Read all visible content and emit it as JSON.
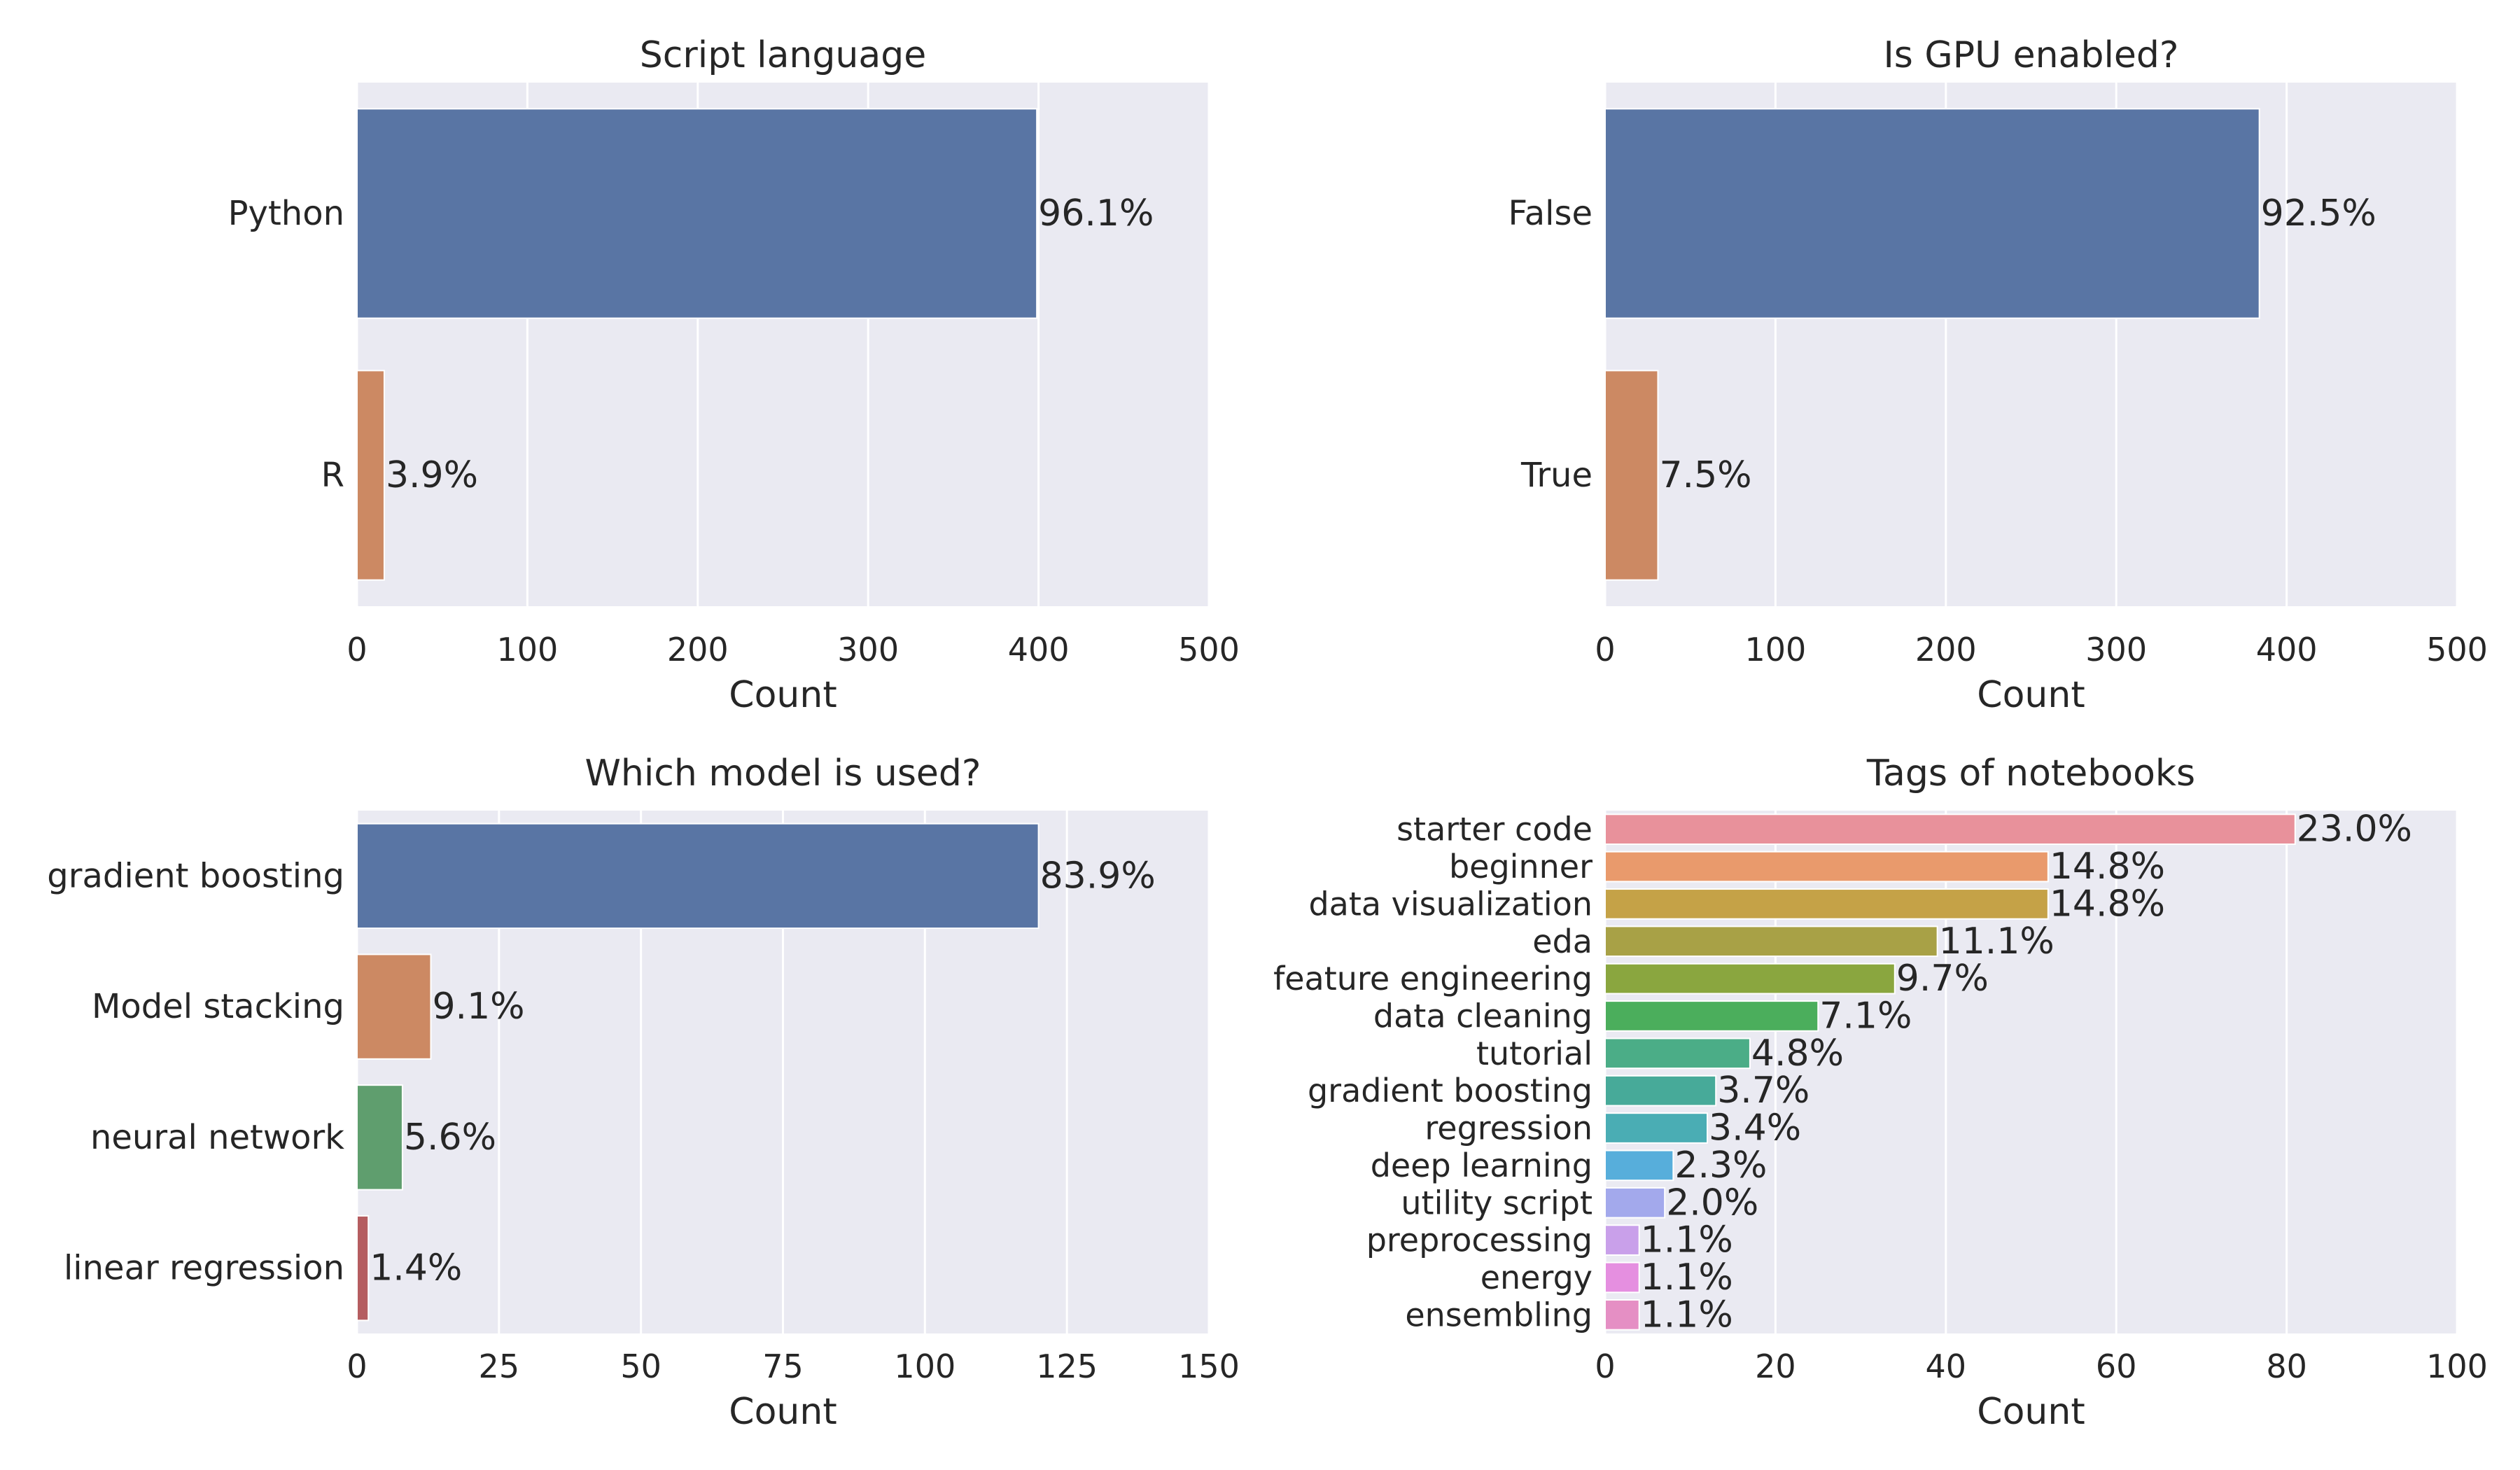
{
  "chart_data": [
    {
      "type": "bar",
      "orientation": "horizontal",
      "title": "Script language",
      "xlabel": "Count",
      "ylabel": "",
      "xlim": [
        0,
        500
      ],
      "xticks": [
        "0",
        "100",
        "200",
        "300",
        "400",
        "500"
      ],
      "grid": true,
      "categories": [
        "Python",
        "R"
      ],
      "values": [
        399,
        16
      ],
      "labels": [
        "96.1%",
        "3.9%"
      ],
      "colors": [
        "#5975a4",
        "#cc8963"
      ]
    },
    {
      "type": "bar",
      "orientation": "horizontal",
      "title": "Is GPU enabled?",
      "xlabel": "Count",
      "ylabel": "",
      "xlim": [
        0,
        500
      ],
      "xticks": [
        "0",
        "100",
        "200",
        "300",
        "400",
        "500"
      ],
      "grid": true,
      "categories": [
        "False",
        "True"
      ],
      "values": [
        384,
        31
      ],
      "labels": [
        "92.5%",
        "7.5%"
      ],
      "colors": [
        "#5975a4",
        "#cc8963"
      ]
    },
    {
      "type": "bar",
      "orientation": "horizontal",
      "title": "Which model is used?",
      "xlabel": "Count",
      "ylabel": "",
      "xlim": [
        0,
        150
      ],
      "xticks": [
        "0",
        "25",
        "50",
        "75",
        "100",
        "125",
        "150"
      ],
      "grid": true,
      "categories": [
        "gradient boosting",
        "Model stacking",
        "neural network",
        "linear regression"
      ],
      "values": [
        120,
        13,
        8,
        2
      ],
      "labels": [
        "83.9%",
        "9.1%",
        "5.6%",
        "1.4%"
      ],
      "colors": [
        "#5975a4",
        "#cc8963",
        "#5f9e6e",
        "#b55d60"
      ]
    },
    {
      "type": "bar",
      "orientation": "horizontal",
      "title": "Tags of notebooks",
      "xlabel": "Count",
      "ylabel": "",
      "xlim": [
        0,
        100
      ],
      "xticks": [
        "0",
        "20",
        "40",
        "60",
        "80",
        "100"
      ],
      "grid": true,
      "categories": [
        "starter code",
        "beginner",
        "data visualization",
        "eda",
        "feature engineering",
        "data cleaning",
        "tutorial",
        "gradient boosting",
        "regression",
        "deep learning",
        "utility script",
        "preprocessing",
        "energy",
        "ensembling"
      ],
      "values": [
        81,
        52,
        52,
        39,
        34,
        25,
        17,
        13,
        12,
        8,
        7,
        4,
        4,
        4
      ],
      "labels": [
        "23.0%",
        "14.8%",
        "14.8%",
        "11.1%",
        "9.7%",
        "7.1%",
        "4.8%",
        "3.7%",
        "3.4%",
        "2.3%",
        "2.0%",
        "1.1%",
        "1.1%",
        "1.1%"
      ],
      "colors": [
        "#e8919b",
        "#e99a6c",
        "#c5a247",
        "#a8a146",
        "#8aa63f",
        "#4bae5c",
        "#4bad87",
        "#47aa99",
        "#4aadb4",
        "#57aedb",
        "#a3a9ec",
        "#c9a0ea",
        "#e58fe0",
        "#e58fc4"
      ]
    }
  ]
}
